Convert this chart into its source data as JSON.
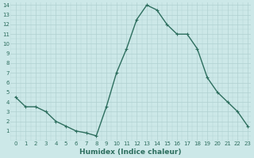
{
  "x": [
    0,
    1,
    2,
    3,
    4,
    5,
    6,
    7,
    8,
    9,
    10,
    11,
    12,
    13,
    14,
    15,
    16,
    17,
    18,
    19,
    20,
    21,
    22,
    23
  ],
  "y": [
    4.5,
    3.5,
    3.5,
    3.0,
    2.0,
    1.5,
    1.0,
    0.8,
    0.5,
    3.5,
    7.0,
    9.5,
    12.5,
    14.0,
    13.5,
    12.0,
    11.0,
    11.0,
    9.5,
    6.5,
    5.0,
    4.0,
    3.0,
    1.5
  ],
  "xlabel": "Humidex (Indice chaleur)",
  "ylim": [
    0,
    14
  ],
  "xlim": [
    -0.5,
    23.3
  ],
  "line_color": "#2d6e5e",
  "bg_color": "#cce8e8",
  "grid_color": "#b0d0d0",
  "tick_label_color": "#2d6e5e",
  "xlabel_color": "#2d6e5e",
  "yticks": [
    1,
    2,
    3,
    4,
    5,
    6,
    7,
    8,
    9,
    10,
    11,
    12,
    13,
    14
  ],
  "xticks": [
    0,
    1,
    2,
    3,
    4,
    5,
    6,
    7,
    8,
    9,
    10,
    11,
    12,
    13,
    14,
    15,
    16,
    17,
    18,
    19,
    20,
    21,
    22,
    23
  ],
  "marker_size": 2.5,
  "line_width": 1.0,
  "tick_fontsize": 5.0,
  "xlabel_fontsize": 6.5
}
